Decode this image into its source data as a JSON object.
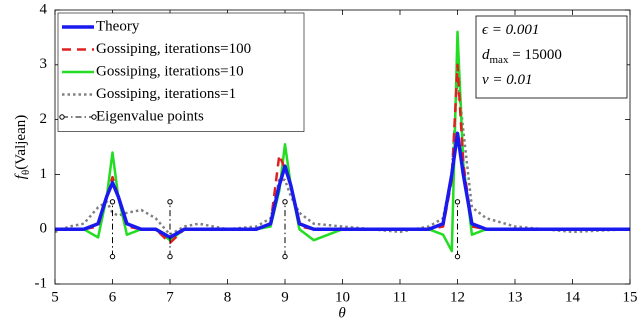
{
  "chart_data": {
    "type": "line",
    "xlabel": "θ",
    "ylabel": {
      "base": "f",
      "sub": "θ",
      "rest": "(Valjean)"
    },
    "xlim": [
      5,
      15
    ],
    "xticks": [
      5,
      6,
      7,
      8,
      9,
      10,
      11,
      12,
      13,
      14,
      15
    ],
    "ylim": [
      -1,
      4
    ],
    "yticks": [
      -1,
      0,
      1,
      2,
      3,
      4
    ],
    "legend": "upper left",
    "annotations": [
      {
        "base": "ϵ = 0.001"
      },
      {
        "base": "d",
        "sub": "max",
        "rest": " = 15000"
      },
      {
        "base": "v = 0.01"
      }
    ],
    "series": [
      {
        "name": "Gossiping, iterations=1",
        "color": "#808080",
        "style": "dotted",
        "linewidth": 2.5,
        "legend_order": 3,
        "x": [
          5,
          5.25,
          5.5,
          5.75,
          5.9,
          6,
          6.1,
          6.25,
          6.5,
          6.75,
          7,
          7.25,
          7.5,
          8,
          8.5,
          8.75,
          8.9,
          9,
          9.1,
          9.25,
          9.5,
          10,
          10.5,
          11,
          11.5,
          11.75,
          11.9,
          12,
          12.1,
          12.25,
          12.5,
          13,
          14,
          15
        ],
        "values": [
          -0.05,
          0.05,
          0.1,
          0.4,
          0.5,
          0.3,
          0.25,
          0.3,
          0.35,
          0.2,
          -0.1,
          0.05,
          0.1,
          0.0,
          0.05,
          0.2,
          0.9,
          0.9,
          0.6,
          0.3,
          0.1,
          0.05,
          0.0,
          -0.05,
          0.05,
          0.2,
          1.0,
          2.8,
          1.8,
          0.4,
          0.2,
          0.05,
          -0.05,
          0.0
        ]
      },
      {
        "name": "Gossiping, iterations=10",
        "color": "#22dd22",
        "style": "solid",
        "linewidth": 2.5,
        "legend_order": 2,
        "x": [
          5,
          5.5,
          5.75,
          5.9,
          6,
          6.1,
          6.25,
          6.5,
          6.75,
          7,
          7.25,
          7.5,
          8,
          8.5,
          8.75,
          8.9,
          9,
          9.1,
          9.25,
          9.5,
          10,
          10.5,
          11,
          11.5,
          11.75,
          11.9,
          12,
          12.1,
          12.25,
          12.5,
          13,
          14,
          15
        ],
        "values": [
          0,
          0,
          -0.15,
          0.6,
          1.4,
          0.6,
          -0.1,
          0.0,
          0.0,
          -0.2,
          0.0,
          0.0,
          0.0,
          0.0,
          0.05,
          0.7,
          1.55,
          0.8,
          0.0,
          -0.2,
          0.0,
          0.0,
          0.0,
          0.0,
          -0.1,
          -0.4,
          3.6,
          1.2,
          -0.1,
          0.0,
          0.0,
          0.0,
          0.0
        ]
      },
      {
        "name": "Gossiping, iterations=100",
        "color": "#e02020",
        "style": "dashed",
        "linewidth": 2.5,
        "legend_order": 1,
        "x": [
          5,
          5.5,
          5.75,
          5.9,
          6,
          6.1,
          6.25,
          6.5,
          6.75,
          7,
          7.25,
          7.5,
          8,
          8.5,
          8.75,
          8.9,
          9,
          9.1,
          9.25,
          9.5,
          10,
          10.5,
          11,
          11.5,
          11.75,
          11.9,
          12,
          12.1,
          12.25,
          12.5,
          13,
          14,
          15
        ],
        "values": [
          0,
          0,
          0.05,
          0.6,
          0.95,
          0.6,
          0.05,
          0.0,
          0.0,
          -0.25,
          0.0,
          0.0,
          0.0,
          0.0,
          0.1,
          1.35,
          1.1,
          0.8,
          0.05,
          0.0,
          0.0,
          0.0,
          0.0,
          0.0,
          0.05,
          0.9,
          3.0,
          1.2,
          0.05,
          0.0,
          0.0,
          0.0,
          0.0
        ]
      },
      {
        "name": "Theory",
        "color": "#1a1aee",
        "style": "solid",
        "linewidth": 3.5,
        "legend_order": 0,
        "x": [
          5,
          5.5,
          5.75,
          5.9,
          6,
          6.1,
          6.25,
          6.5,
          6.75,
          7,
          7.25,
          7.5,
          8,
          8.5,
          8.75,
          8.9,
          9,
          9.1,
          9.25,
          9.5,
          10,
          10.5,
          11,
          11.5,
          11.75,
          11.9,
          12,
          12.1,
          12.25,
          12.5,
          13,
          14,
          15
        ],
        "values": [
          0,
          0,
          0.1,
          0.6,
          0.85,
          0.6,
          0.1,
          0,
          0,
          -0.15,
          0,
          0,
          0,
          0,
          0.1,
          0.8,
          1.15,
          0.8,
          0.1,
          0,
          0,
          0,
          0,
          0,
          0.1,
          1.0,
          1.75,
          1.0,
          0.1,
          0,
          0,
          0,
          0
        ]
      },
      {
        "name": "Eigenvalue points",
        "color": "#000000",
        "style": "dashdot",
        "linewidth": 1,
        "marker": "circle",
        "legend_order": 4,
        "x": [
          6,
          6,
          6,
          7,
          7,
          7,
          9,
          9,
          9,
          12,
          12
        ],
        "values": [
          -0.5,
          0.5,
          null,
          -0.5,
          0.5,
          null,
          -0.5,
          0.5,
          null,
          -0.5,
          0.5
        ]
      }
    ]
  }
}
